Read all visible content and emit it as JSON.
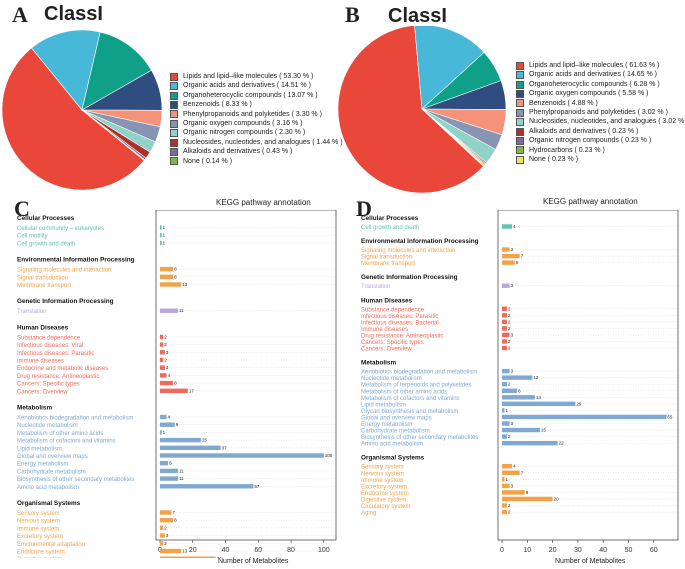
{
  "panels": {
    "A": {
      "letter": "A",
      "title": "ClassI"
    },
    "B": {
      "letter": "B",
      "title": "ClassI"
    },
    "C": {
      "letter": "C",
      "title": "KEGG pathway annotation",
      "xlabel": "Number of Metabolites"
    },
    "D": {
      "letter": "D",
      "title": "KEGG pathway annotation",
      "xlabel": "Number of Metabolites"
    }
  },
  "colors": {
    "cellular": "#5fc4b0",
    "environmental": "#f4a24a",
    "genetic": "#b9a7dc",
    "human": "#ef6a5c",
    "metabolism": "#7fa9d0",
    "organismal": "#f4a24a"
  },
  "chart_data": [
    {
      "type": "pie",
      "title": "ClassI",
      "slices": [
        {
          "label": "Lipids and lipid–like molecules  ( 53.30 % )",
          "value": 53.3,
          "color": "#e8473a"
        },
        {
          "label": "Organic acids and derivatives  ( 14.51 % )",
          "value": 14.51,
          "color": "#47b8d8"
        },
        {
          "label": "Organoheterocyclic compounds  ( 13.07 % )",
          "value": 13.07,
          "color": "#10a08a"
        },
        {
          "label": "Benzenoids  ( 8.33 % )",
          "value": 8.33,
          "color": "#2f4d7f"
        },
        {
          "label": "Phenylpropanoids and polyketides  ( 3.30 % )",
          "value": 3.3,
          "color": "#f4937a"
        },
        {
          "label": "Organic oxygen compounds  ( 3.16 % )",
          "value": 3.16,
          "color": "#8894b4"
        },
        {
          "label": "Organic nitrogen compounds  ( 2.30 % )",
          "value": 2.3,
          "color": "#8fd2c6"
        },
        {
          "label": "Nucleosides, nucleotides, and analogues  ( 1.44 % )",
          "value": 1.44,
          "color": "#b0302d"
        },
        {
          "label": "Alkaloids and derivatives  ( 0.43 % )",
          "value": 0.43,
          "color": "#7a6b98"
        },
        {
          "label": "None  ( 0.14 % )",
          "value": 0.14,
          "color": "#86b34a"
        }
      ]
    },
    {
      "type": "pie",
      "title": "ClassI",
      "slices": [
        {
          "label": "Lipids and lipid–like molecules  ( 61.63 % )",
          "value": 61.63,
          "color": "#e8473a"
        },
        {
          "label": "Organic acids and derivatives  ( 14.65 % )",
          "value": 14.65,
          "color": "#47b8d8"
        },
        {
          "label": "Organoheterocyclic compounds  ( 6.28 % )",
          "value": 6.28,
          "color": "#10a08a"
        },
        {
          "label": "Organic oxygen compounds  ( 5.58 % )",
          "value": 5.58,
          "color": "#2f4d7f"
        },
        {
          "label": "Benzenoids  ( 4.88 % )",
          "value": 4.88,
          "color": "#f4937a"
        },
        {
          "label": "Phenylpropanoids and polyketides  ( 3.02 % )",
          "value": 3.02,
          "color": "#8894b4"
        },
        {
          "label": "Nucleosides, nucleotides, and analogues  ( 3.02 % )",
          "value": 3.02,
          "color": "#8fd2c6"
        },
        {
          "label": "Alkaloids and derivatives  ( 0.23 % )",
          "value": 0.23,
          "color": "#b0302d"
        },
        {
          "label": "Organic nitrogen compounds  ( 0.23 % )",
          "value": 0.23,
          "color": "#7a6b98"
        },
        {
          "label": "Hydrocarbons  ( 0.23 % )",
          "value": 0.23,
          "color": "#86b34a"
        },
        {
          "label": "None  ( 0.23 % )",
          "value": 0.23,
          "color": "#f2e05a"
        }
      ]
    },
    {
      "type": "bar",
      "orientation": "horizontal",
      "title": "KEGG pathway annotation",
      "xlabel": "Number of Metabolites",
      "xlim": [
        0,
        105
      ],
      "xticks": [
        0,
        20,
        40,
        60,
        80,
        100
      ],
      "groups": [
        {
          "name": "Cellular Processes",
          "cat": "cellular",
          "items": [
            {
              "label": "Cellular community – eukaryotes",
              "value": 1
            },
            {
              "label": "Cell motility",
              "value": 1
            },
            {
              "label": "Cell growth and death",
              "value": 1
            }
          ]
        },
        {
          "name": "Environmental Information Processing",
          "cat": "environmental",
          "items": [
            {
              "label": "Signaling molecules and interaction",
              "value": 8
            },
            {
              "label": "Signal transduction",
              "value": 8
            },
            {
              "label": "Membrane transport",
              "value": 13
            }
          ]
        },
        {
          "name": "Genetic Information Processing",
          "cat": "genetic",
          "items": [
            {
              "label": "Translation",
              "value": 11
            }
          ]
        },
        {
          "name": "Human Diseases",
          "cat": "human",
          "items": [
            {
              "label": "Substance dependence",
              "value": 2
            },
            {
              "label": "Infectious diseases: Viral",
              "value": 2
            },
            {
              "label": "Infectious diseases: Parasitic",
              "value": 3
            },
            {
              "label": "Immune diseases",
              "value": 2
            },
            {
              "label": "Endocrine and metabolic diseases",
              "value": 3
            },
            {
              "label": "Drug resistance: Antineoplastic",
              "value": 4
            },
            {
              "label": "Cancers: Specific types",
              "value": 8
            },
            {
              "label": "Cancers: Overview",
              "value": 17
            }
          ]
        },
        {
          "name": "Metabolism",
          "cat": "metabolism",
          "items": [
            {
              "label": "Xenobiotics biodegradation and metabolism",
              "value": 4
            },
            {
              "label": "Nucleotide metabolism",
              "value": 9
            },
            {
              "label": "Metabolism of other amino acids",
              "value": 1
            },
            {
              "label": "Metabolism of cofactors and vitamins",
              "value": 25
            },
            {
              "label": "Lipid metabolism",
              "value": 37
            },
            {
              "label": "Global and overview maps",
              "value": 100
            },
            {
              "label": "Energy metabolism",
              "value": 5
            },
            {
              "label": "Carbohydrate metabolism",
              "value": 11
            },
            {
              "label": "Biosynthesis of other secondary metabolites",
              "value": 11
            },
            {
              "label": "Amino acid metabolism",
              "value": 57
            }
          ]
        },
        {
          "name": "Organismal Systems",
          "cat": "organismal",
          "items": [
            {
              "label": "Sensory system",
              "value": 7
            },
            {
              "label": "Nervous system",
              "value": 8
            },
            {
              "label": "Immune system",
              "value": 2
            },
            {
              "label": "Excretory system",
              "value": 3
            },
            {
              "label": "Environmental adaptation",
              "value": 2
            },
            {
              "label": "Endocrine system",
              "value": 13
            },
            {
              "label": "Digestive system",
              "value": 34
            },
            {
              "label": "Circulatory system",
              "value": 2
            }
          ]
        }
      ]
    },
    {
      "type": "bar",
      "orientation": "horizontal",
      "title": "KEGG pathway annotation",
      "xlabel": "Number of Metabolites",
      "xlim": [
        0,
        68
      ],
      "xticks": [
        0,
        10,
        20,
        30,
        40,
        50,
        60
      ],
      "groups": [
        {
          "name": "Cellular Processes",
          "cat": "cellular",
          "items": [
            {
              "label": "Cell growth and death",
              "value": 4
            }
          ]
        },
        {
          "name": "Environmental Information Processing",
          "cat": "environmental",
          "items": [
            {
              "label": "Signaling molecules and interaction",
              "value": 3
            },
            {
              "label": "Signal transduction",
              "value": 7
            },
            {
              "label": "Membrane transport",
              "value": 5
            }
          ]
        },
        {
          "name": "Genetic Information Processing",
          "cat": "genetic",
          "items": [
            {
              "label": "Translation",
              "value": 3
            }
          ]
        },
        {
          "name": "Human Diseases",
          "cat": "human",
          "items": [
            {
              "label": "Substance dependence",
              "value": 2
            },
            {
              "label": "Infectious diseases: Parasitic",
              "value": 2
            },
            {
              "label": "Infectious diseases: Bacterial",
              "value": 2
            },
            {
              "label": "Immune diseases",
              "value": 2
            },
            {
              "label": "Drug resistance: Antineoplastic",
              "value": 3
            },
            {
              "label": "Cancers: Specific types",
              "value": 2
            },
            {
              "label": "Cancers: Overview",
              "value": 2
            }
          ]
        },
        {
          "name": "Metabolism",
          "cat": "metabolism",
          "items": [
            {
              "label": "Xenobiotics biodegradation and metabolism",
              "value": 3
            },
            {
              "label": "Nucleotide metabolism",
              "value": 12
            },
            {
              "label": "Metabolism of terpenoids and polyketides",
              "value": 2
            },
            {
              "label": "Metabolism of other amino acids",
              "value": 6
            },
            {
              "label": "Metabolism of cofactors and vitamins",
              "value": 13
            },
            {
              "label": "Lipid metabolism",
              "value": 29
            },
            {
              "label": "Glycan biosynthesis and metabolism",
              "value": 1
            },
            {
              "label": "Global and overview maps",
              "value": 65
            },
            {
              "label": "Energy metabolism",
              "value": 3
            },
            {
              "label": "Carbohydrate metabolism",
              "value": 15
            },
            {
              "label": "Biosynthesis of other secondary metabolites",
              "value": 2
            },
            {
              "label": "Amino acid metabolism",
              "value": 22
            }
          ]
        },
        {
          "name": "Organismal Systems",
          "cat": "organismal",
          "items": [
            {
              "label": "Sensory system",
              "value": 4
            },
            {
              "label": "Nervous system",
              "value": 7
            },
            {
              "label": "Immune system",
              "value": 1
            },
            {
              "label": "Excretory system",
              "value": 3
            },
            {
              "label": "Endocrine system",
              "value": 9
            },
            {
              "label": "Digestive system",
              "value": 20
            },
            {
              "label": "Circulatory system",
              "value": 2
            },
            {
              "label": "Aging",
              "value": 2
            }
          ]
        }
      ]
    }
  ]
}
